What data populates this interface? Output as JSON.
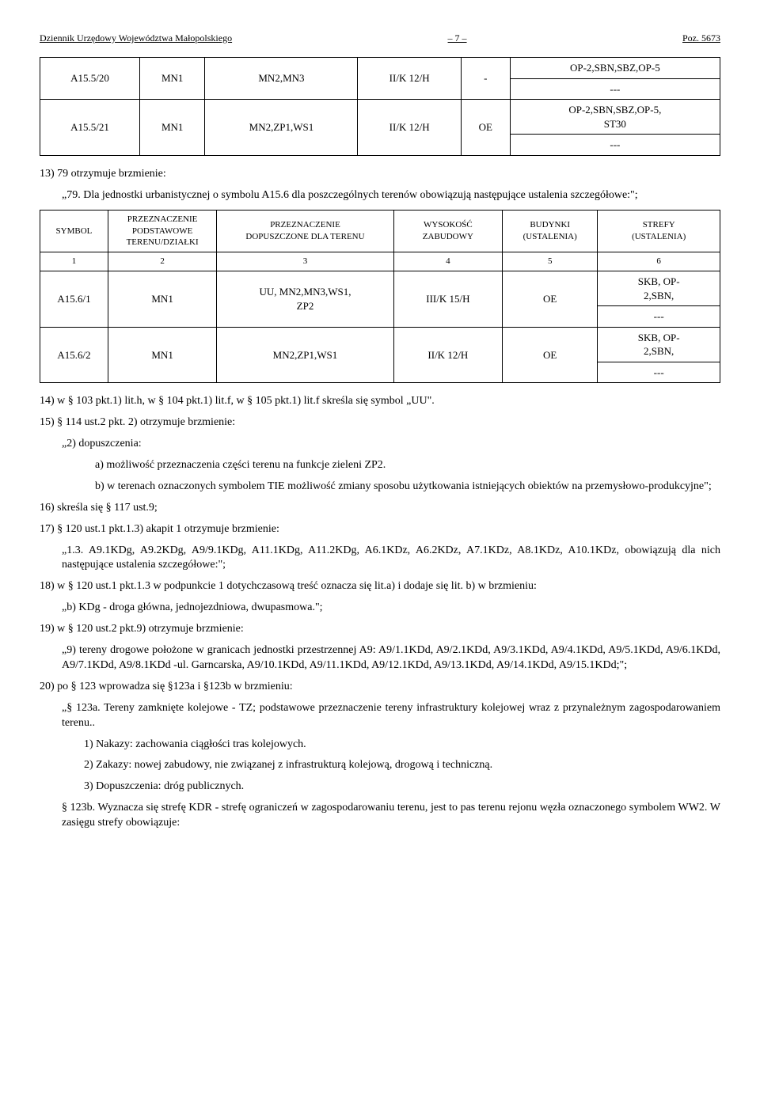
{
  "header": {
    "left": "Dziennik Urzędowy Województwa Małopolskiego",
    "center": "– 7 –",
    "right": "Poz. 5673"
  },
  "table1": {
    "rows": [
      [
        "A15.5/20",
        "MN1",
        "MN2,MN3",
        "II/K 12/H",
        "-",
        "OP-2,SBN,SBZ,OP-5\n---"
      ],
      [
        "A15.5/21",
        "MN1",
        "MN2,ZP1,WS1",
        "II/K 12/H",
        "OE",
        "OP-2,SBN,SBZ,OP-5,\nST30\n---"
      ]
    ]
  },
  "p13_lead": "13) 79 otrzymuje brzmienie:",
  "p13_body": "„79. Dla jednostki urbanistycznej o symbolu A15.6 dla poszczególnych terenów obowiązują następujące ustalenia szczegółowe:\";",
  "table2": {
    "headers": [
      "SYMBOL",
      "PRZEZNACZENIE\nPODSTAWOWE\nTERENU/DZIAŁKI",
      "PRZEZNACZENIE\nDOPUSZCZONE DLA TERENU",
      "WYSOKOŚĆ\nZABUDOWY",
      "BUDYNKI\n(USTALENIA)",
      "STREFY\n(USTALENIA)"
    ],
    "numrow": [
      "1",
      "2",
      "3",
      "4",
      "5",
      "6"
    ],
    "rows": [
      [
        "A15.6/1",
        "MN1",
        "UU, MN2,MN3,WS1,\nZP2",
        "III/K 15/H",
        "OE",
        "SKB, OP-\n2,SBN,\n---"
      ],
      [
        "A15.6/2",
        "MN1",
        "MN2,ZP1,WS1",
        "II/K 12/H",
        "OE",
        "SKB, OP-\n2,SBN,\n---"
      ]
    ]
  },
  "p14": "14) w § 103 pkt.1) lit.h, w § 104 pkt.1) lit.f, w § 105 pkt.1) lit.f skreśla się symbol „UU\".",
  "p15_lead": "15) § 114 ust.2 pkt. 2) otrzymuje brzmienie:",
  "p15_sub": "„2) dopuszczenia:",
  "p15_a": "a) możliwość przeznaczenia części terenu na funkcje zieleni ZP2.",
  "p15_b": "b) w terenach oznaczonych symbolem TIE możliwość zmiany sposobu użytkowania istniejących obiektów na przemysłowo-produkcyjne\";",
  "p16": "16) skreśla się § 117 ust.9;",
  "p17_lead": "17) § 120 ust.1 pkt.1.3) akapit 1 otrzymuje brzmienie:",
  "p17_body": "„1.3. A9.1KDg, A9.2KDg, A9/9.1KDg, A11.1KDg, A11.2KDg, A6.1KDz, A6.2KDz, A7.1KDz, A8.1KDz, A10.1KDz, obowiązują dla nich następujące ustalenia szczegółowe:\";",
  "p18_lead": "18) w § 120 ust.1 pkt.1.3 w podpunkcie 1 dotychczasową treść oznacza się lit.a) i dodaje się lit. b) w brzmieniu:",
  "p18_body": "„b) KDg - droga główna, jednojezdniowa, dwupasmowa.\";",
  "p19_lead": "19) w § 120 ust.2 pkt.9) otrzymuje brzmienie:",
  "p19_body": "„9) tereny drogowe położone w granicach jednostki przestrzennej A9: A9/1.1KDd, A9/2.1KDd, A9/3.1KDd, A9/4.1KDd, A9/5.1KDd, A9/6.1KDd, A9/7.1KDd, A9/8.1KDd -ul. Garncarska, A9/10.1KDd, A9/11.1KDd, A9/12.1KDd, A9/13.1KDd, A9/14.1KDd, A9/15.1KDd;\";",
  "p20_lead": "20) po § 123 wprowadza się §123a i §123b w brzmieniu:",
  "p20_123a": "„§ 123a. Tereny zamknięte kolejowe - TZ; podstawowe przeznaczenie tereny infrastruktury kolejowej wraz z przynależnym zagospodarowaniem terenu..",
  "p20_1": "1) Nakazy: zachowania ciągłości tras kolejowych.",
  "p20_2": "2) Zakazy: nowej zabudowy, nie związanej z infrastrukturą kolejową, drogową i techniczną.",
  "p20_3": "3) Dopuszczenia: dróg publicznych.",
  "p20_123b": "§ 123b. Wyznacza się strefę KDR - strefę ograniczeń w zagospodarowaniu terenu, jest to pas terenu rejonu węzła oznaczonego symbolem WW2. W zasięgu strefy obowiązuje:"
}
